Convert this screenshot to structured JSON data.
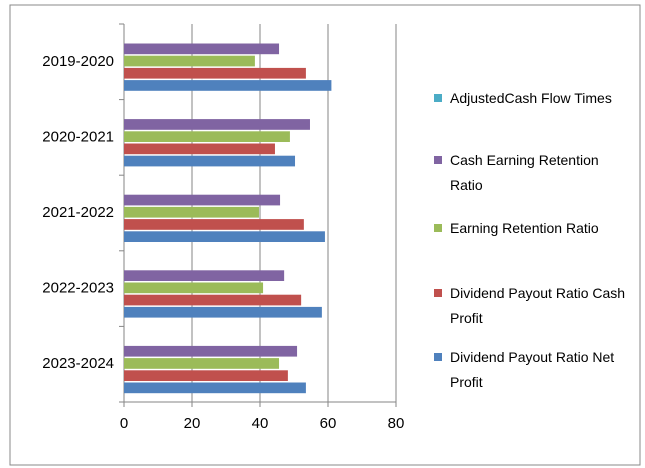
{
  "chart_data": {
    "type": "hbar",
    "categories": [
      "2019-2020",
      "2020-2021",
      "2021-2022",
      "2022-2023",
      "2023-2024"
    ],
    "series": [
      {
        "name": "Dividend Payout Ratio Net Profit",
        "color": "#4f81bd",
        "values": [
          61,
          50.3,
          59.1,
          58.2,
          53.5
        ]
      },
      {
        "name": "Dividend Payout Ratio Cash Profit",
        "color": "#c0504d",
        "values": [
          53.5,
          44.4,
          52.9,
          52.1,
          48.2
        ]
      },
      {
        "name": "Earning Retention Ratio",
        "color": "#9bbb59",
        "values": [
          38.5,
          48.8,
          39.7,
          40.9,
          45.6
        ]
      },
      {
        "name": "Cash Earning Retention Ratio",
        "color": "#8064a2",
        "values": [
          45.6,
          54.7,
          45.9,
          47.1,
          50.9
        ]
      },
      {
        "name": "AdjustedCash Flow Times",
        "color": "#4bacc6",
        "values": [
          null,
          null,
          null,
          null,
          null
        ]
      }
    ],
    "xlim": [
      0,
      80
    ],
    "xticks": [
      0,
      20,
      40,
      60,
      80
    ],
    "grid": true,
    "legend": "right"
  }
}
